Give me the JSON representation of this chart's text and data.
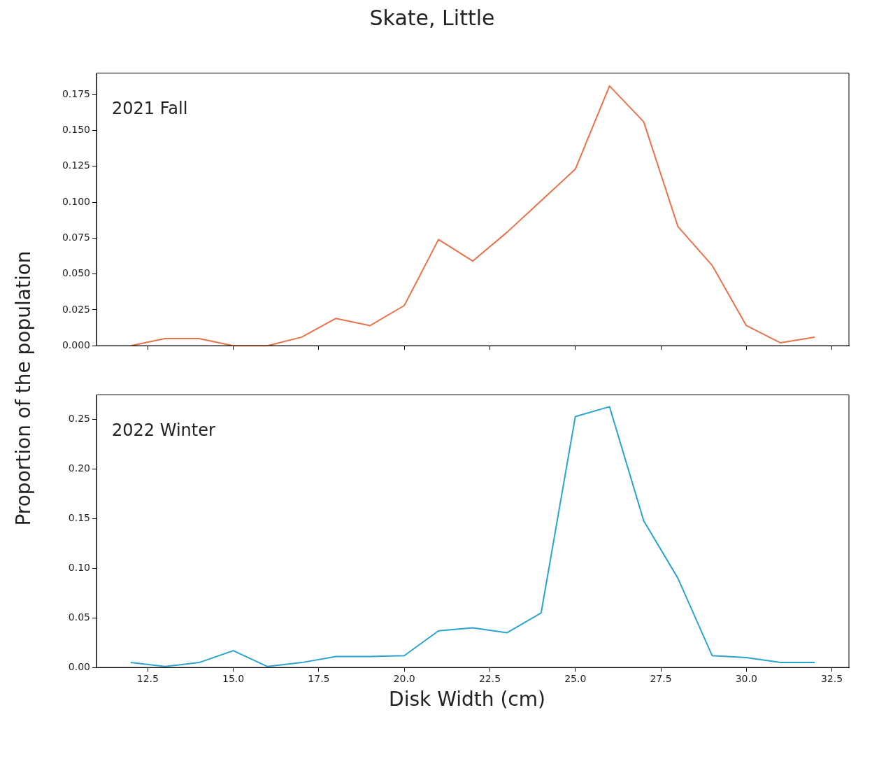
{
  "chart_data": [
    {
      "type": "line",
      "title": "Skate, Little",
      "ylabel": "Proportion of the population",
      "annotations": [
        "2021 Fall"
      ],
      "tick_labels": "y",
      "grid": false,
      "legend": false,
      "x": [
        12,
        13,
        14,
        15,
        16,
        17,
        18,
        19,
        20,
        21,
        22,
        23,
        24,
        25,
        26,
        27,
        28,
        29,
        30,
        31,
        32
      ],
      "series": [
        {
          "color": "#e8734a",
          "values": [
            0.0,
            0.005,
            0.005,
            0.0,
            0.0,
            0.006,
            0.019,
            0.014,
            0.028,
            0.074,
            0.059,
            0.079,
            0.101,
            0.123,
            0.181,
            0.156,
            0.083,
            0.056,
            0.014,
            0.002,
            0.006
          ]
        }
      ],
      "xlim": [
        11,
        33
      ],
      "xticks": [
        {
          "value": 12.5,
          "label": null
        },
        {
          "value": 15,
          "label": null
        },
        {
          "value": 17.5,
          "label": null
        },
        {
          "value": 20,
          "label": null
        },
        {
          "value": 22.5,
          "label": null
        },
        {
          "value": 25,
          "label": null
        },
        {
          "value": 27.5,
          "label": null
        },
        {
          "value": 30,
          "label": null
        },
        {
          "value": 32.5,
          "label": null
        }
      ],
      "ylim": [
        0,
        0.19
      ],
      "yticks": [
        {
          "value": 0,
          "label": "0.000"
        },
        0.025,
        {
          "value": 0.05,
          "label": "0.050"
        },
        0.075,
        {
          "value": 0.1,
          "label": "0.100"
        },
        0.125,
        {
          "value": 0.15,
          "label": "0.150"
        },
        0.175
      ]
    },
    {
      "type": "line",
      "xlabel": "Disk Width (cm)",
      "annotations": [
        "2022 Winter"
      ],
      "grid": false,
      "legend": false,
      "x": [
        12,
        13,
        14,
        15,
        16,
        17,
        18,
        19,
        20,
        21,
        22,
        23,
        24,
        25,
        26,
        27,
        28,
        29,
        30,
        31,
        32
      ],
      "series": [
        {
          "color": "#2aa3d1",
          "values": [
            0.005,
            0.001,
            0.005,
            0.017,
            0.001,
            0.005,
            0.011,
            0.011,
            0.012,
            0.037,
            0.04,
            0.035,
            0.055,
            0.253,
            0.263,
            0.148,
            0.09,
            0.012,
            0.01,
            0.005,
            0.005
          ]
        }
      ],
      "xlim": [
        11,
        33
      ],
      "xticks": [
        {
          "value": 12.5,
          "label": "12.5"
        },
        {
          "value": 15,
          "label": "15.0"
        },
        {
          "value": 17.5,
          "label": "17.5"
        },
        {
          "value": 20,
          "label": "20.0"
        },
        {
          "value": 22.5,
          "label": "22.5"
        },
        {
          "value": 25,
          "label": "25.0"
        },
        {
          "value": 27.5,
          "label": "27.5"
        },
        {
          "value": 30,
          "label": "30.0"
        },
        {
          "value": 32.5,
          "label": "32.5"
        }
      ],
      "ylim": [
        0,
        0.275
      ],
      "yticks": [
        {
          "value": 0,
          "label": "0.00"
        },
        {
          "value": 0.05,
          "label": "0.05"
        },
        {
          "value": 0.1,
          "label": "0.10"
        },
        {
          "value": 0.15,
          "label": "0.15"
        },
        {
          "value": 0.2,
          "label": "0.20"
        },
        {
          "value": 0.25,
          "label": "0.25"
        }
      ]
    }
  ]
}
